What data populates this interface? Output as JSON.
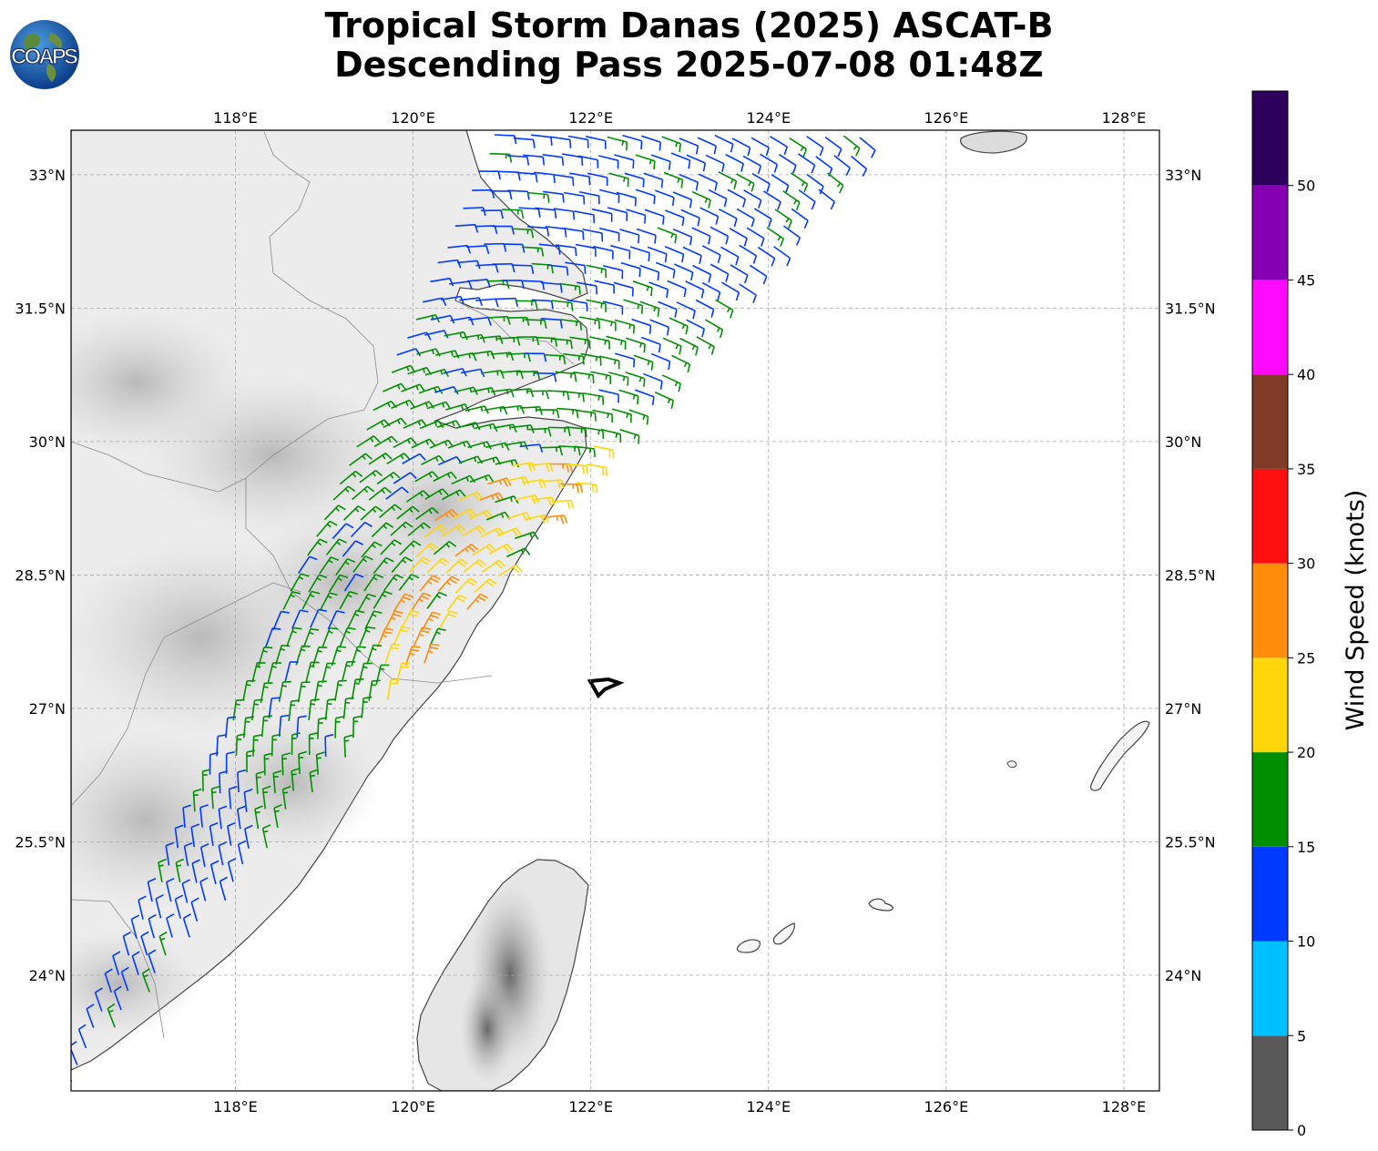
{
  "title": {
    "line1": "Tropical Storm Danas (2025) ASCAT-B",
    "line2": "Descending Pass 2025-07-08 01:48Z"
  },
  "logo": {
    "text": "COAPS",
    "icon": "globe-icon"
  },
  "map": {
    "extent": {
      "lon_min": 116.15,
      "lon_max": 128.4,
      "lat_min": 22.7,
      "lat_max": 33.5
    },
    "lon_ticks": [
      {
        "value": 118,
        "label": "118°E"
      },
      {
        "value": 120,
        "label": "120°E"
      },
      {
        "value": 122,
        "label": "122°E"
      },
      {
        "value": 124,
        "label": "124°E"
      },
      {
        "value": 126,
        "label": "126°E"
      },
      {
        "value": 128,
        "label": "128°E"
      }
    ],
    "lat_ticks": [
      {
        "value": 33,
        "label": "33°N"
      },
      {
        "value": 31.5,
        "label": "31.5°N"
      },
      {
        "value": 30,
        "label": "30°N"
      },
      {
        "value": 28.5,
        "label": "28.5°N"
      },
      {
        "value": 27,
        "label": "27°N"
      },
      {
        "value": 25.5,
        "label": "25.5°N"
      },
      {
        "value": 24,
        "label": "24°N"
      }
    ],
    "gridlines": true,
    "storm_center": {
      "lon": 122.2,
      "lat": 27.3
    }
  },
  "colorbar": {
    "label": "Wind Speed (knots)",
    "ticks": [
      "0",
      "5",
      "10",
      "15",
      "20",
      "25",
      "30",
      "35",
      "40",
      "45",
      "50"
    ],
    "bins": [
      {
        "min": 0,
        "max": 5,
        "color": "#595959"
      },
      {
        "min": 5,
        "max": 10,
        "color": "#00bfff"
      },
      {
        "min": 10,
        "max": 15,
        "color": "#0039ff"
      },
      {
        "min": 15,
        "max": 20,
        "color": "#008f00"
      },
      {
        "min": 20,
        "max": 25,
        "color": "#ffd60a"
      },
      {
        "min": 25,
        "max": 30,
        "color": "#ff8c0a"
      },
      {
        "min": 30,
        "max": 35,
        "color": "#ff1010"
      },
      {
        "min": 35,
        "max": 40,
        "color": "#7f3b28"
      },
      {
        "min": 40,
        "max": 45,
        "color": "#ff0aff"
      },
      {
        "min": 45,
        "max": 50,
        "color": "#8600b3"
      },
      {
        "min": 50,
        "max": 55,
        "color": "#2d005e"
      }
    ]
  }
}
